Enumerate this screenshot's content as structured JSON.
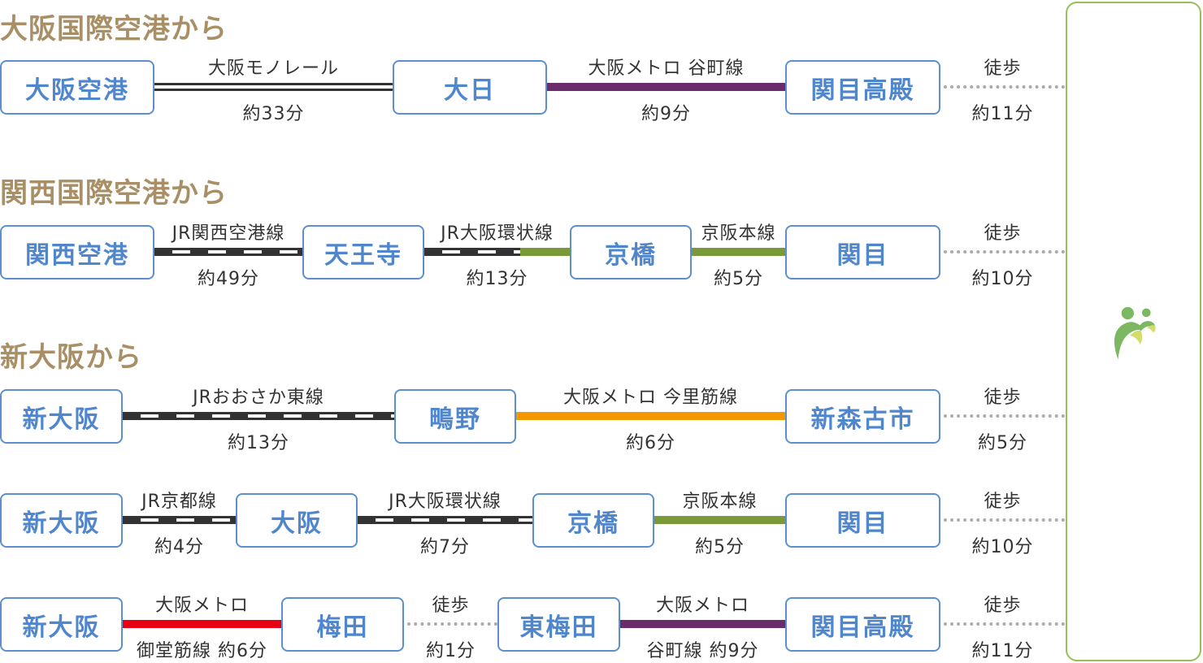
{
  "headings": [
    "大阪国際空港から",
    "関西国際空港から",
    "新大阪から"
  ],
  "colors": {
    "heading": "#a88f66",
    "station": "#4f86cc",
    "tanimachi": "#6b2c6b",
    "keihan": "#7a9a3a",
    "imazatosuji": "#f39800",
    "midosuji": "#e60012",
    "walk": "#aaaaaa",
    "logo_green": "#7cb862",
    "logo_yellow": "#d4dc6c"
  },
  "logo": {
    "icon": "two-people-logo-icon"
  },
  "routes": [
    {
      "stations": [
        "大阪空港",
        "大日",
        "関目高殿"
      ],
      "segments": [
        {
          "line": "大阪モノレール",
          "time": "約33分",
          "type": "monorail"
        },
        {
          "line": "大阪メトロ 谷町線",
          "time": "約9分",
          "type": "tanimachi"
        },
        {
          "line": "徒歩",
          "time": "約11分",
          "type": "walk"
        }
      ]
    },
    {
      "stations": [
        "関西空港",
        "天王寺",
        "京橋",
        "関目"
      ],
      "segments": [
        {
          "line": "JR関西空港線",
          "time": "約49分",
          "type": "jr"
        },
        {
          "line": "JR大阪環状線",
          "time": "約13分",
          "type": "jr-keihan"
        },
        {
          "line": "京阪本線",
          "time": "約5分",
          "type": "keihan"
        },
        {
          "line": "徒歩",
          "time": "約10分",
          "type": "walk"
        }
      ]
    },
    {
      "stations": [
        "新大阪",
        "鴫野",
        "新森古市"
      ],
      "segments": [
        {
          "line": "JRおおさか東線",
          "time": "約13分",
          "type": "jr"
        },
        {
          "line": "大阪メトロ 今里筋線",
          "time": "約6分",
          "type": "imazatosuji"
        },
        {
          "line": "徒歩",
          "time": "約5分",
          "type": "walk"
        }
      ]
    },
    {
      "stations": [
        "新大阪",
        "大阪",
        "京橋",
        "関目"
      ],
      "segments": [
        {
          "line": "JR京都線",
          "time": "約4分",
          "type": "jr"
        },
        {
          "line": "JR大阪環状線",
          "time": "約7分",
          "type": "jr"
        },
        {
          "line": "京阪本線",
          "time": "約5分",
          "type": "keihan"
        },
        {
          "line": "徒歩",
          "time": "約10分",
          "type": "walk"
        }
      ]
    },
    {
      "stations": [
        "新大阪",
        "梅田",
        "東梅田",
        "関目高殿"
      ],
      "segments": [
        {
          "line": "大阪メトロ",
          "time": "御堂筋線 約6分",
          "type": "midosuji"
        },
        {
          "line": "徒歩",
          "time": "約1分",
          "type": "walk"
        },
        {
          "line": "大阪メトロ",
          "time": "谷町線 約9分",
          "type": "tanimachi"
        },
        {
          "line": "徒歩",
          "time": "約11分",
          "type": "walk"
        }
      ]
    }
  ]
}
